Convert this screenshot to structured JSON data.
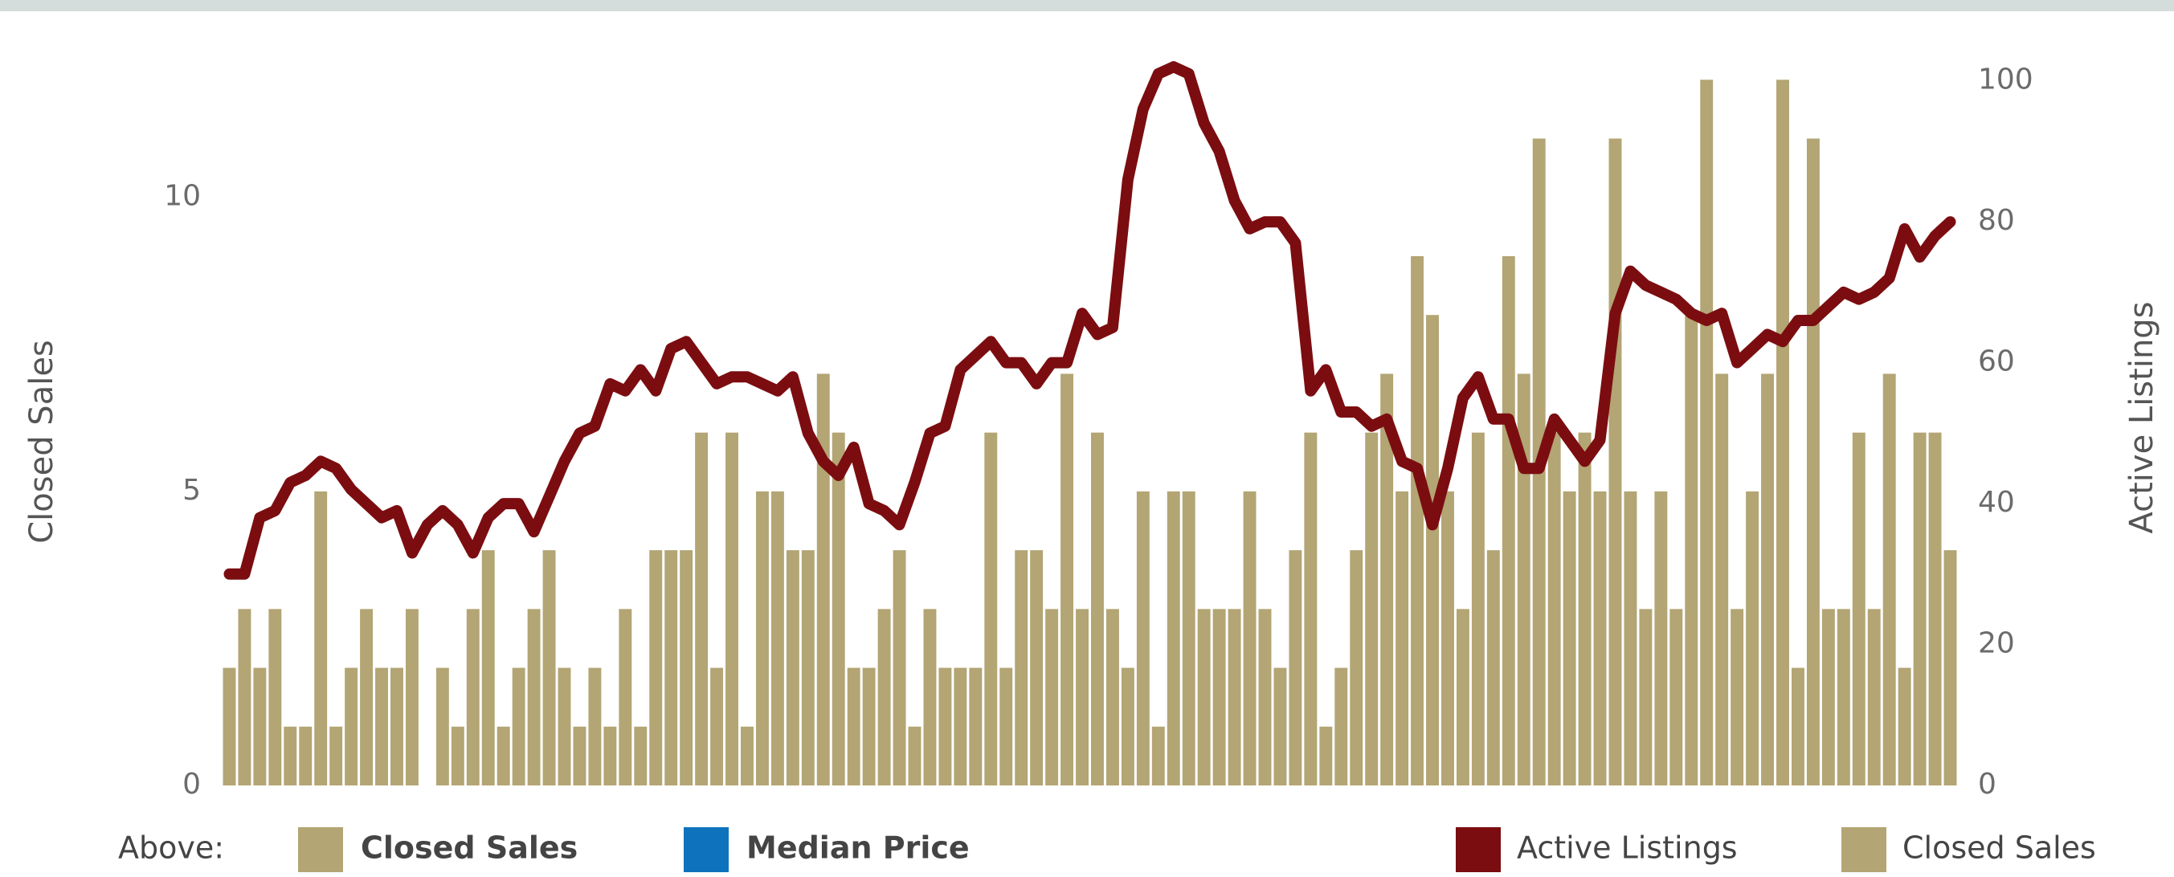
{
  "chart_data": {
    "type": "bar_line",
    "y_label": "Closed Sales",
    "y2_label": "Active Listings",
    "ylim": [
      0,
      12.4
    ],
    "yticks": [
      0,
      5,
      10
    ],
    "y2lim": [
      0,
      103.5
    ],
    "y2ticks": [
      0,
      20,
      40,
      60,
      80,
      100
    ],
    "grid": false,
    "series": [
      {
        "name": "Closed Sales",
        "type": "bar",
        "color": "#b3a574",
        "values": [
          2,
          3,
          2,
          3,
          1,
          1,
          5,
          1,
          2,
          3,
          2,
          2,
          3,
          0,
          2,
          1,
          3,
          4,
          1,
          2,
          3,
          4,
          2,
          1,
          2,
          1,
          3,
          1,
          4,
          4,
          4,
          6,
          2,
          6,
          1,
          5,
          5,
          4,
          4,
          7,
          6,
          2,
          2,
          3,
          4,
          1,
          3,
          2,
          2,
          2,
          6,
          2,
          4,
          4,
          3,
          7,
          3,
          6,
          3,
          2,
          5,
          1,
          5,
          5,
          3,
          3,
          3,
          5,
          3,
          2,
          4,
          6,
          1,
          2,
          4,
          6,
          7,
          5,
          9,
          8,
          5,
          3,
          6,
          4,
          9,
          7,
          11,
          6,
          5,
          6,
          5,
          11,
          5,
          3,
          5,
          3,
          8,
          12,
          7,
          3,
          5,
          7,
          12,
          2,
          11,
          3,
          3,
          6,
          3,
          7,
          2,
          6,
          6,
          4
        ]
      },
      {
        "name": "Active Listings",
        "type": "line",
        "axis": "y2",
        "color": "#7b0d10",
        "values": [
          30,
          30,
          38,
          39,
          43,
          44,
          46,
          45,
          42,
          40,
          38,
          39,
          33,
          37,
          39,
          37,
          33,
          38,
          40,
          40,
          36,
          41,
          46,
          50,
          51,
          57,
          56,
          59,
          56,
          62,
          63,
          60,
          57,
          58,
          58,
          57,
          56,
          58,
          50,
          46,
          44,
          48,
          40,
          39,
          37,
          43,
          50,
          51,
          59,
          61,
          63,
          60,
          60,
          57,
          60,
          60,
          67,
          64,
          65,
          86,
          96,
          101,
          102,
          101,
          94,
          90,
          83,
          79,
          80,
          80,
          77,
          56,
          59,
          53,
          53,
          51,
          52,
          46,
          45,
          37,
          45,
          55,
          58,
          52,
          52,
          45,
          45,
          52,
          49,
          46,
          49,
          67,
          73,
          71,
          70,
          69,
          67,
          66,
          67,
          60,
          62,
          64,
          63,
          66,
          66,
          68,
          70,
          69,
          70,
          72,
          79,
          75,
          78,
          80
        ]
      }
    ],
    "legend_above": {
      "label": "Above:",
      "items": [
        {
          "name": "Closed Sales",
          "color": "#b3a574"
        },
        {
          "name": "Median Price",
          "color": "#0f72bd"
        }
      ]
    }
  }
}
